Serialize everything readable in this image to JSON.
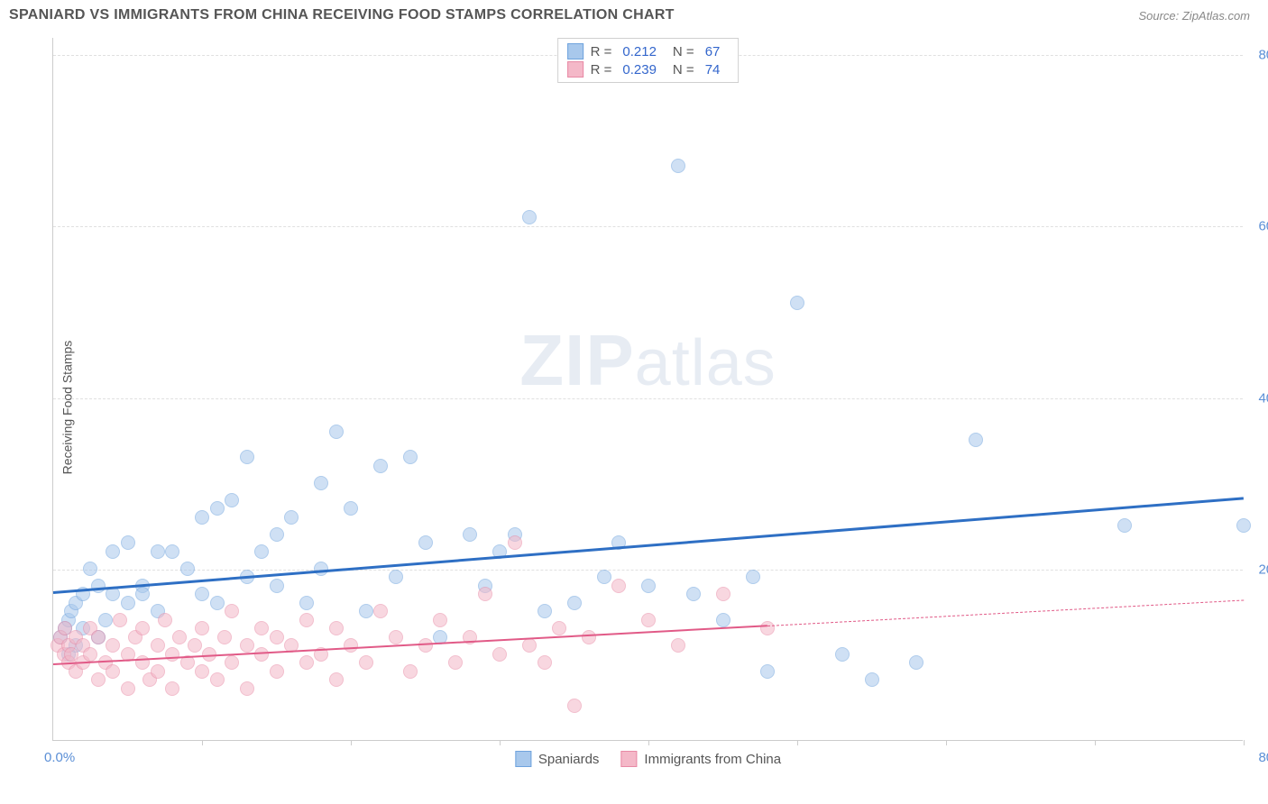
{
  "header": {
    "title": "SPANIARD VS IMMIGRANTS FROM CHINA RECEIVING FOOD STAMPS CORRELATION CHART",
    "source": "Source: ZipAtlas.com"
  },
  "watermark": {
    "zip": "ZIP",
    "atlas": "atlas"
  },
  "chart": {
    "type": "scatter",
    "ylabel": "Receiving Food Stamps",
    "xlim": [
      0,
      80
    ],
    "ylim": [
      0,
      82
    ],
    "background_color": "#ffffff",
    "grid_color": "#e0e0e0",
    "axis_color": "#cccccc",
    "tick_label_color": "#5b8fd6",
    "axis_label_color": "#555555",
    "tick_fontsize": 15,
    "label_fontsize": 14,
    "yticks": [
      {
        "value": 20,
        "label": "20.0%"
      },
      {
        "value": 40,
        "label": "40.0%"
      },
      {
        "value": 60,
        "label": "60.0%"
      },
      {
        "value": 80,
        "label": "80.0%"
      }
    ],
    "xtick_marks": [
      10,
      20,
      30,
      40,
      50,
      60,
      70,
      80
    ],
    "xtick_left": "0.0%",
    "xtick_right": "80.0%",
    "marker_radius": 8,
    "marker_opacity": 0.55,
    "series": [
      {
        "name": "Spaniards",
        "legend_label": "Spaniards",
        "fill_color": "#a8c8ec",
        "stroke_color": "#6fa3dd",
        "trend_color": "#2e6fc4",
        "trend_width": 3,
        "trend": {
          "x1": 0,
          "y1": 17.5,
          "x2": 80,
          "y2": 28.5
        },
        "stats": {
          "r": "0.212",
          "n": "67"
        },
        "points": [
          [
            0.5,
            12
          ],
          [
            0.8,
            13
          ],
          [
            1,
            10
          ],
          [
            1,
            14
          ],
          [
            1.2,
            15
          ],
          [
            1.5,
            11
          ],
          [
            1.5,
            16
          ],
          [
            2,
            13
          ],
          [
            2,
            17
          ],
          [
            2.5,
            20
          ],
          [
            3,
            18
          ],
          [
            3,
            12
          ],
          [
            3.5,
            14
          ],
          [
            4,
            22
          ],
          [
            4,
            17
          ],
          [
            5,
            16
          ],
          [
            5,
            23
          ],
          [
            6,
            18
          ],
          [
            6,
            17
          ],
          [
            7,
            15
          ],
          [
            7,
            22
          ],
          [
            8,
            22
          ],
          [
            9,
            20
          ],
          [
            10,
            17
          ],
          [
            10,
            26
          ],
          [
            11,
            16
          ],
          [
            11,
            27
          ],
          [
            12,
            28
          ],
          [
            13,
            19
          ],
          [
            13,
            33
          ],
          [
            14,
            22
          ],
          [
            15,
            24
          ],
          [
            15,
            18
          ],
          [
            16,
            26
          ],
          [
            17,
            16
          ],
          [
            18,
            30
          ],
          [
            18,
            20
          ],
          [
            19,
            36
          ],
          [
            20,
            27
          ],
          [
            21,
            15
          ],
          [
            22,
            32
          ],
          [
            23,
            19
          ],
          [
            24,
            33
          ],
          [
            25,
            23
          ],
          [
            26,
            12
          ],
          [
            28,
            24
          ],
          [
            29,
            18
          ],
          [
            30,
            22
          ],
          [
            31,
            24
          ],
          [
            32,
            61
          ],
          [
            33,
            15
          ],
          [
            35,
            16
          ],
          [
            37,
            19
          ],
          [
            38,
            23
          ],
          [
            40,
            18
          ],
          [
            42,
            67
          ],
          [
            43,
            17
          ],
          [
            45,
            14
          ],
          [
            47,
            19
          ],
          [
            48,
            8
          ],
          [
            50,
            51
          ],
          [
            53,
            10
          ],
          [
            55,
            7
          ],
          [
            58,
            9
          ],
          [
            62,
            35
          ],
          [
            72,
            25
          ],
          [
            80,
            25
          ]
        ]
      },
      {
        "name": "Immigrants from China",
        "legend_label": "Immigrants from China",
        "fill_color": "#f4b8c8",
        "stroke_color": "#e88aa5",
        "trend_color": "#e15a87",
        "trend_width": 2,
        "trend": {
          "x1": 0,
          "y1": 9,
          "x2": 48,
          "y2": 13.5
        },
        "trend_dash": {
          "x1": 48,
          "y1": 13.5,
          "x2": 80,
          "y2": 16.5
        },
        "stats": {
          "r": "0.239",
          "n": "74"
        },
        "points": [
          [
            0.3,
            11
          ],
          [
            0.5,
            12
          ],
          [
            0.7,
            10
          ],
          [
            0.8,
            13
          ],
          [
            1,
            9
          ],
          [
            1,
            11
          ],
          [
            1.2,
            10
          ],
          [
            1.5,
            8
          ],
          [
            1.5,
            12
          ],
          [
            2,
            9
          ],
          [
            2,
            11
          ],
          [
            2.5,
            10
          ],
          [
            2.5,
            13
          ],
          [
            3,
            7
          ],
          [
            3,
            12
          ],
          [
            3.5,
            9
          ],
          [
            4,
            8
          ],
          [
            4,
            11
          ],
          [
            4.5,
            14
          ],
          [
            5,
            10
          ],
          [
            5,
            6
          ],
          [
            5.5,
            12
          ],
          [
            6,
            9
          ],
          [
            6,
            13
          ],
          [
            6.5,
            7
          ],
          [
            7,
            11
          ],
          [
            7,
            8
          ],
          [
            7.5,
            14
          ],
          [
            8,
            10
          ],
          [
            8,
            6
          ],
          [
            8.5,
            12
          ],
          [
            9,
            9
          ],
          [
            9.5,
            11
          ],
          [
            10,
            8
          ],
          [
            10,
            13
          ],
          [
            10.5,
            10
          ],
          [
            11,
            7
          ],
          [
            11.5,
            12
          ],
          [
            12,
            9
          ],
          [
            12,
            15
          ],
          [
            13,
            11
          ],
          [
            13,
            6
          ],
          [
            14,
            10
          ],
          [
            14,
            13
          ],
          [
            15,
            8
          ],
          [
            15,
            12
          ],
          [
            16,
            11
          ],
          [
            17,
            9
          ],
          [
            17,
            14
          ],
          [
            18,
            10
          ],
          [
            19,
            7
          ],
          [
            19,
            13
          ],
          [
            20,
            11
          ],
          [
            21,
            9
          ],
          [
            22,
            15
          ],
          [
            23,
            12
          ],
          [
            24,
            8
          ],
          [
            25,
            11
          ],
          [
            26,
            14
          ],
          [
            27,
            9
          ],
          [
            28,
            12
          ],
          [
            29,
            17
          ],
          [
            30,
            10
          ],
          [
            31,
            23
          ],
          [
            32,
            11
          ],
          [
            33,
            9
          ],
          [
            34,
            13
          ],
          [
            35,
            4
          ],
          [
            36,
            12
          ],
          [
            38,
            18
          ],
          [
            40,
            14
          ],
          [
            42,
            11
          ],
          [
            45,
            17
          ],
          [
            48,
            13
          ]
        ]
      }
    ],
    "legend_top": {
      "r_label": "R  =",
      "n_label": "N  ="
    }
  }
}
